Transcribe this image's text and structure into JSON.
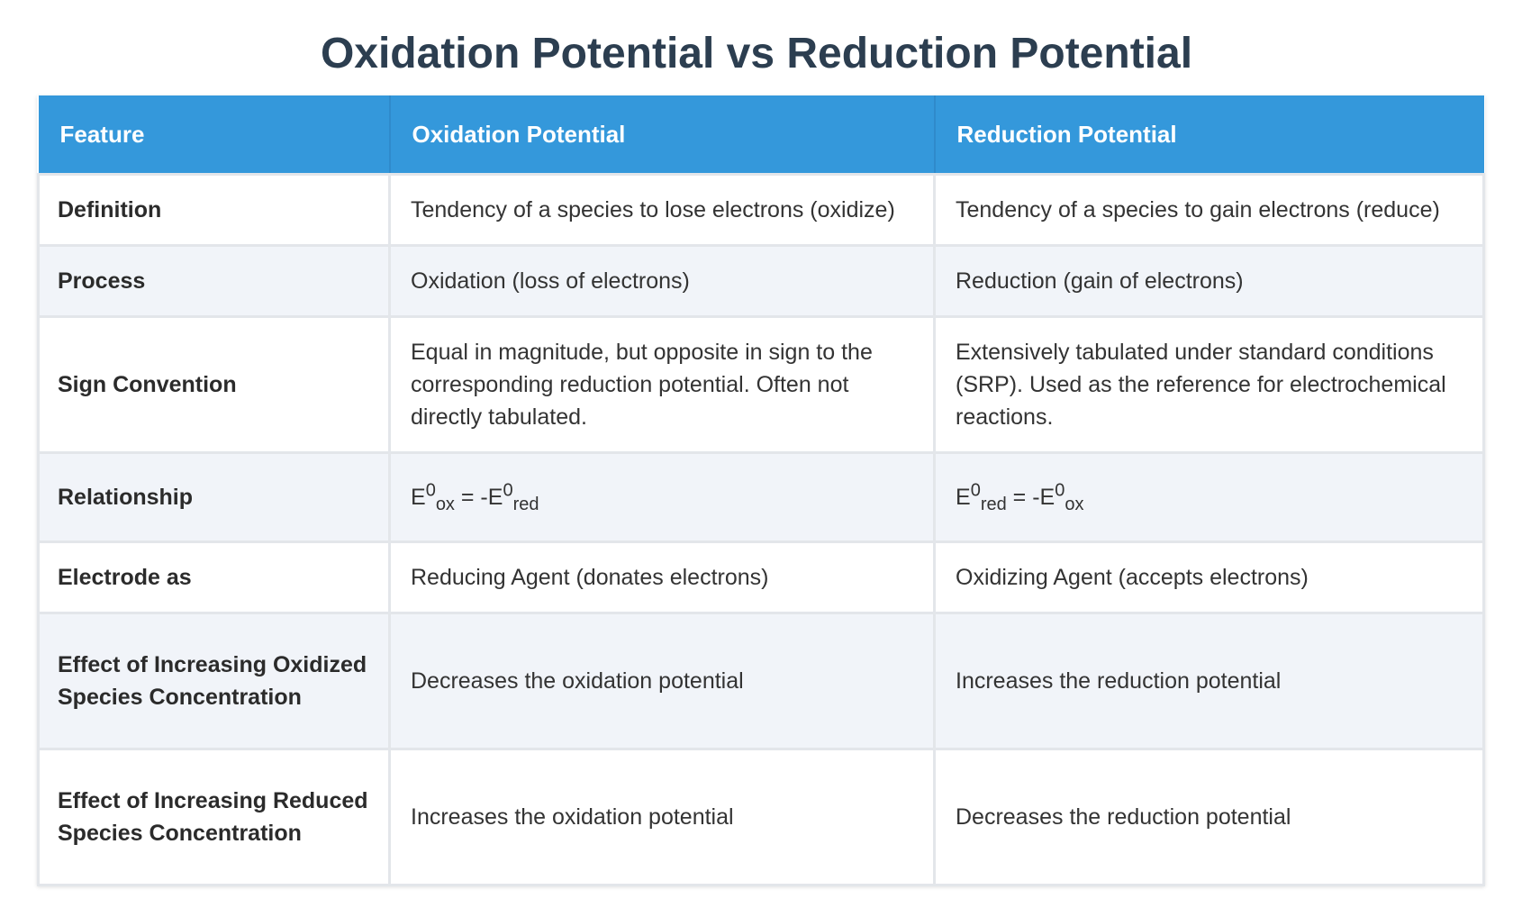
{
  "title": "Oxidation Potential vs Reduction Potential",
  "table": {
    "headers": [
      "Feature",
      "Oxidation Potential",
      "Reduction Potential"
    ],
    "rows": [
      {
        "feature": "Definition",
        "oxidation": "Tendency of a species to lose electrons (oxidize)",
        "reduction": "Tendency of a species to gain electrons (reduce)"
      },
      {
        "feature": "Process",
        "oxidation": "Oxidation (loss of electrons)",
        "reduction": "Reduction (gain of electrons)"
      },
      {
        "feature": "Sign Convention",
        "oxidation": "Equal in magnitude, but opposite in sign to the corresponding reduction potential. Often not directly tabulated.",
        "reduction": "Extensively tabulated under standard conditions (SRP). Used as the reference for electrochemical reactions."
      },
      {
        "feature": "Relationship",
        "oxidation": {
          "lhs_symbol": "E",
          "lhs_sup": "0",
          "lhs_sub": "ox",
          "operator": " = -",
          "rhs_symbol": "E",
          "rhs_sup": "0",
          "rhs_sub": "red"
        },
        "reduction": {
          "lhs_symbol": "E",
          "lhs_sup": "0",
          "lhs_sub": "red",
          "operator": " = -",
          "rhs_symbol": "E",
          "rhs_sup": "0",
          "rhs_sub": "ox"
        }
      },
      {
        "feature": "Electrode as",
        "oxidation": "Reducing Agent (donates electrons)",
        "reduction": "Oxidizing Agent (accepts electrons)"
      },
      {
        "feature": "Effect of Increasing Oxidized Species Concentration",
        "oxidation": "Decreases the oxidation potential",
        "reduction": "Increases the reduction potential"
      },
      {
        "feature": "Effect of Increasing Reduced Species Concentration",
        "oxidation": "Increases the oxidation potential",
        "reduction": "Decreases the reduction potential"
      }
    ]
  },
  "colors": {
    "title": "#2c3e50",
    "header_background": "#3498db",
    "header_text": "#ffffff",
    "row_alt_background": "#f1f4f9",
    "border": "#e3e6ea"
  }
}
